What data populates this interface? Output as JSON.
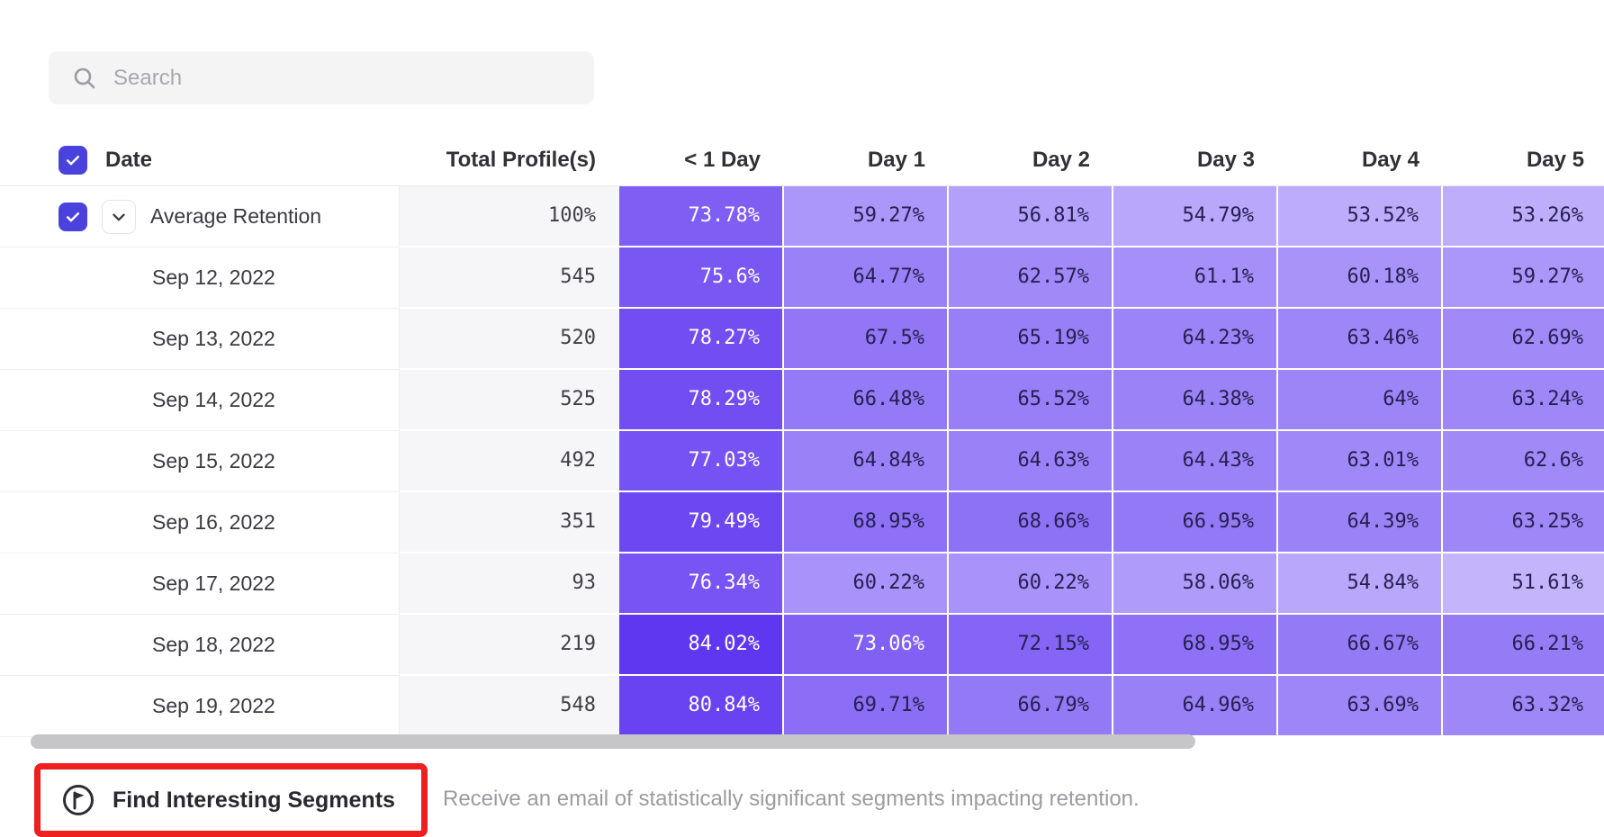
{
  "search": {
    "placeholder": "Search"
  },
  "table": {
    "header": {
      "date": "Date",
      "total": "Total Profile(s)",
      "days": [
        "< 1 Day",
        "Day 1",
        "Day 2",
        "Day 3",
        "Day 4",
        "Day 5"
      ]
    },
    "rows": [
      {
        "label": "Average Retention",
        "total": "100%",
        "expandable": true,
        "cells": [
          "73.78%",
          "59.27%",
          "56.81%",
          "54.79%",
          "53.52%",
          "53.26%"
        ]
      },
      {
        "label": "Sep 12, 2022",
        "total": "545",
        "cells": [
          "75.6%",
          "64.77%",
          "62.57%",
          "61.1%",
          "60.18%",
          "59.27%"
        ]
      },
      {
        "label": "Sep 13, 2022",
        "total": "520",
        "cells": [
          "78.27%",
          "67.5%",
          "65.19%",
          "64.23%",
          "63.46%",
          "62.69%"
        ]
      },
      {
        "label": "Sep 14, 2022",
        "total": "525",
        "cells": [
          "78.29%",
          "66.48%",
          "65.52%",
          "64.38%",
          "64%",
          "63.24%"
        ]
      },
      {
        "label": "Sep 15, 2022",
        "total": "492",
        "cells": [
          "77.03%",
          "64.84%",
          "64.63%",
          "64.43%",
          "63.01%",
          "62.6%"
        ]
      },
      {
        "label": "Sep 16, 2022",
        "total": "351",
        "cells": [
          "79.49%",
          "68.95%",
          "68.66%",
          "66.95%",
          "64.39%",
          "63.25%"
        ]
      },
      {
        "label": "Sep 17, 2022",
        "total": "93",
        "cells": [
          "76.34%",
          "60.22%",
          "60.22%",
          "58.06%",
          "54.84%",
          "51.61%"
        ]
      },
      {
        "label": "Sep 18, 2022",
        "total": "219",
        "cells": [
          "84.02%",
          "73.06%",
          "72.15%",
          "68.95%",
          "66.67%",
          "66.21%"
        ]
      },
      {
        "label": "Sep 19, 2022",
        "total": "548",
        "cells": [
          "80.84%",
          "69.71%",
          "66.79%",
          "64.96%",
          "63.69%",
          "63.32%"
        ]
      }
    ]
  },
  "footer": {
    "action_label": "Find Interesting Segments",
    "description": "Receive an email of statistically significant segments impacting retention."
  },
  "colors": {
    "accent": "#4a42dc",
    "cell_scale_light": "#c5b6fc",
    "cell_scale_dark": "#5c33f0",
    "cell_text_dark": "#262051",
    "cell_text_light": "#ffffff",
    "annotation": "#ee1f1f",
    "scale_min": 51,
    "scale_max": 85,
    "white_text_threshold": 72.5
  }
}
